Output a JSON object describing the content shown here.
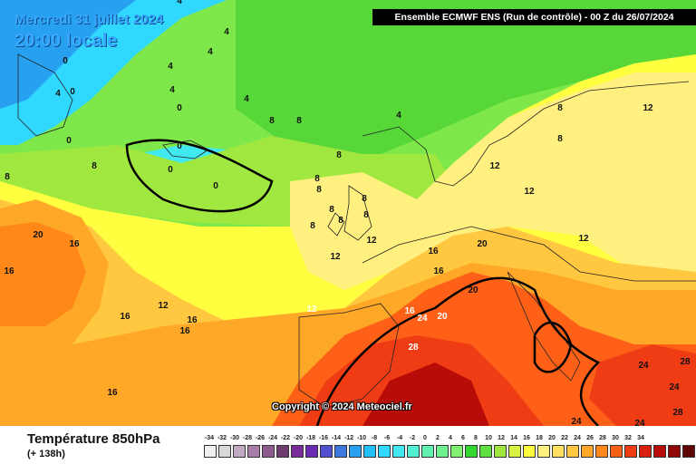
{
  "date": "Mercredi 31 juillet 2024",
  "time": "20:00 locale",
  "model_header": "Ensemble ECMWF ENS  (Run de contrôle)  - 00 Z du 26/07/2024",
  "copyright": "Copyright © 2024 Meteociel.fr",
  "parameter_title": "Température 850hPa",
  "forecast_offset": "(+ 138h)",
  "scale": {
    "labels": [
      "-34",
      "-32",
      "-30",
      "-28",
      "-26",
      "-24",
      "-22",
      "-20",
      "-18",
      "-16",
      "-14",
      "-12",
      "-10",
      "-8",
      "-6",
      "-4",
      "-2",
      "0",
      "2",
      "4",
      "6",
      "8",
      "10",
      "12",
      "14",
      "16",
      "18",
      "20",
      "22",
      "24",
      "26",
      "28",
      "30",
      "32",
      "34"
    ],
    "colors": [
      "#f0f0f0",
      "#d8d8d8",
      "#c0a8c0",
      "#a87ea8",
      "#8c5a8c",
      "#6e3c6e",
      "#7a2a9a",
      "#6a2ab4",
      "#5050d0",
      "#3c78e0",
      "#28a0f0",
      "#20c0f8",
      "#30d8ff",
      "#40e8f0",
      "#50f0d0",
      "#60f0b0",
      "#70f090",
      "#80f070",
      "#30d830",
      "#60e040",
      "#a0e840",
      "#d8f040",
      "#ffff40",
      "#fff080",
      "#ffe060",
      "#ffc840",
      "#ffa828",
      "#ff8818",
      "#ff6018",
      "#f03c14",
      "#d82010",
      "#b80c08",
      "#900808",
      "#600404",
      "#300000"
    ]
  },
  "map_labels": [
    {
      "text": "4"
    },
    {
      "text": "4"
    },
    {
      "text": "4"
    },
    {
      "text": "4"
    },
    {
      "text": "4"
    },
    {
      "text": "4"
    },
    {
      "text": "4"
    },
    {
      "text": "4"
    },
    {
      "text": "0"
    },
    {
      "text": "0"
    },
    {
      "text": "0"
    },
    {
      "text": "0"
    },
    {
      "text": "0"
    },
    {
      "text": "0"
    },
    {
      "text": "0"
    },
    {
      "text": "8"
    },
    {
      "text": "8"
    },
    {
      "text": "8"
    },
    {
      "text": "8"
    },
    {
      "text": "8"
    },
    {
      "text": "8"
    },
    {
      "text": "8"
    },
    {
      "text": "8"
    },
    {
      "text": "8"
    },
    {
      "text": "8"
    },
    {
      "text": "8"
    },
    {
      "text": "8"
    },
    {
      "text": "8"
    },
    {
      "text": "8"
    },
    {
      "text": "12"
    },
    {
      "text": "12"
    },
    {
      "text": "12"
    },
    {
      "text": "12"
    },
    {
      "text": "12"
    },
    {
      "text": "12"
    },
    {
      "text": "12"
    },
    {
      "text": "12"
    },
    {
      "text": "16"
    },
    {
      "text": "16"
    },
    {
      "text": "16"
    },
    {
      "text": "16"
    },
    {
      "text": "16"
    },
    {
      "text": "16"
    },
    {
      "text": "16"
    },
    {
      "text": "16"
    },
    {
      "text": "16"
    },
    {
      "text": "20"
    },
    {
      "text": "20"
    },
    {
      "text": "20"
    },
    {
      "text": "20"
    },
    {
      "text": "24"
    },
    {
      "text": "24"
    },
    {
      "text": "24"
    },
    {
      "text": "24"
    },
    {
      "text": "24"
    },
    {
      "text": "28"
    },
    {
      "text": "28"
    },
    {
      "text": "28"
    }
  ]
}
